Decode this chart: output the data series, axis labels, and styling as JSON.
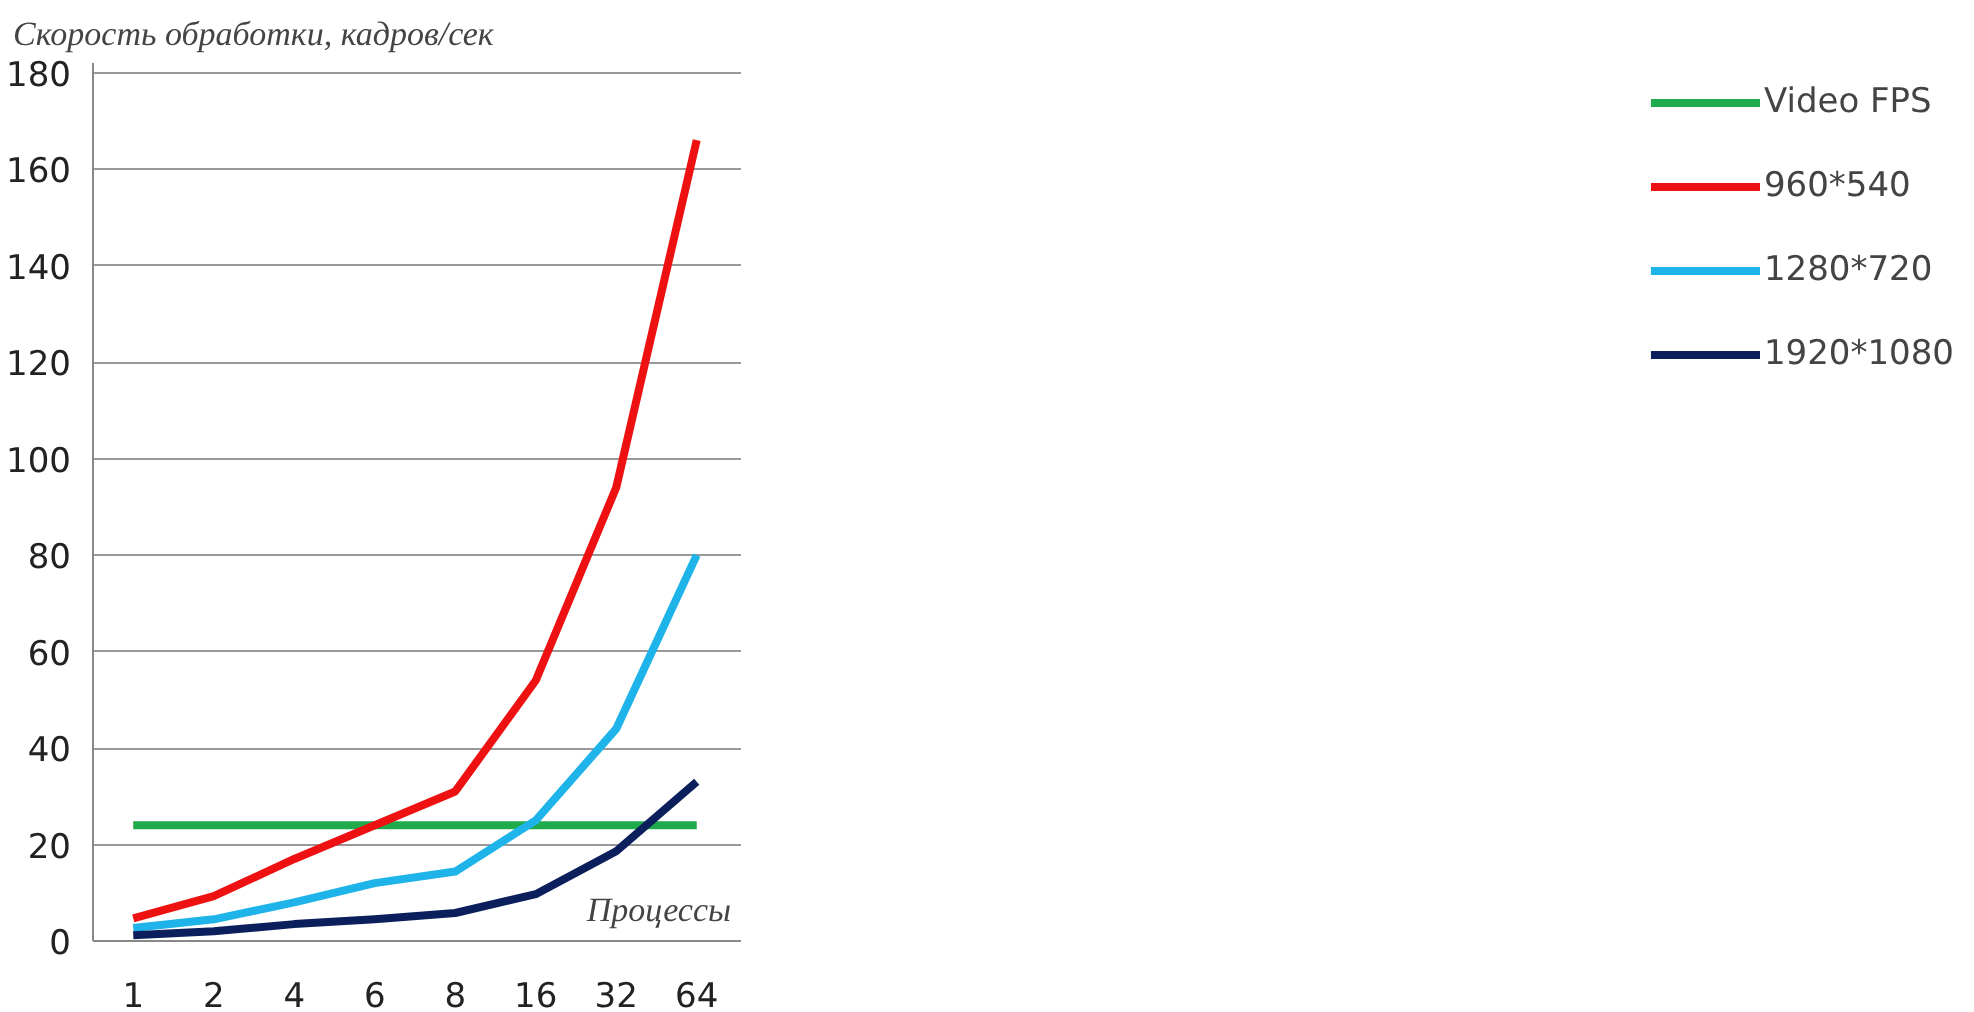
{
  "chart_data": {
    "type": "line",
    "title": "Скорость обработки, кадров/сек",
    "xlabel": "Процессы",
    "categories": [
      "1",
      "2",
      "4",
      "6",
      "8",
      "16",
      "32",
      "64"
    ],
    "series": [
      {
        "name": "Video FPS",
        "color": "#1faa4b",
        "values": [
          24,
          24,
          24,
          24,
          24,
          24,
          24,
          24
        ]
      },
      {
        "name": "960*540",
        "color": "#ee1111",
        "values": [
          4.7,
          9.3,
          17,
          24,
          31,
          54,
          94,
          166
        ]
      },
      {
        "name": "1280*720",
        "color": "#1eb4ea",
        "values": [
          2.7,
          4.5,
          8,
          12,
          14.4,
          25,
          44,
          80
        ]
      },
      {
        "name": "1920*1080",
        "color": "#0b1f5c",
        "values": [
          1.2,
          2,
          3.5,
          4.5,
          5.8,
          9.7,
          18.6,
          33
        ]
      }
    ],
    "ylim": [
      0,
      182
    ],
    "yticks": [
      0,
      20,
      40,
      60,
      80,
      100,
      120,
      140,
      160,
      180
    ],
    "grid": "y",
    "legend": "right",
    "marker": "none",
    "line_style": "solid"
  }
}
